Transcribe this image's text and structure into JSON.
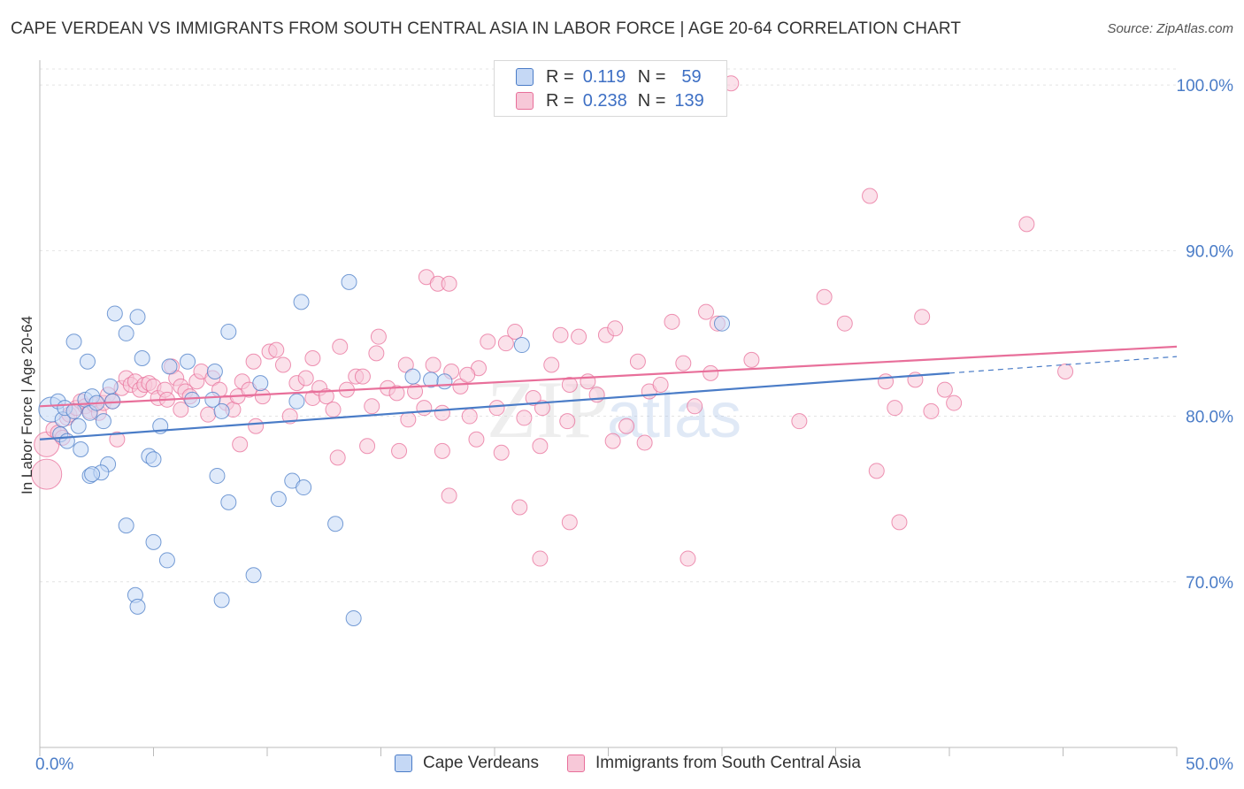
{
  "header": {
    "title": "CAPE VERDEAN VS IMMIGRANTS FROM SOUTH CENTRAL ASIA IN LABOR FORCE | AGE 20-64 CORRELATION CHART",
    "source": "Source: ZipAtlas.com"
  },
  "watermark": {
    "zip": "ZIP",
    "atlas": "atlas"
  },
  "legend": {
    "r_label": "R =",
    "n_label": "N =",
    "series": [
      {
        "r": "0.119",
        "n": "59"
      },
      {
        "r": "0.238",
        "n": "139"
      }
    ]
  },
  "chart_data": {
    "type": "scatter",
    "ylabel": "In Labor Force | Age 20-64",
    "xlim": [
      0,
      50
    ],
    "ylim": [
      60,
      101.5
    ],
    "x_tick_labels": [
      "0.0%",
      "50.0%"
    ],
    "y_ticks": [
      70,
      80,
      90,
      100
    ],
    "y_tick_labels": [
      "70.0%",
      "80.0%",
      "90.0%",
      "100.0%"
    ],
    "grid": true,
    "legend_position": "top-center",
    "series": [
      {
        "name": "Cape Verdeans",
        "color": "#4a7cc7",
        "fill": "#c5d8f5",
        "trend": {
          "x0": 0,
          "y0": 78.6,
          "x1": 40,
          "y1": 82.6,
          "dash_to_x": 50,
          "dash_to_y": 83.6
        },
        "points": [
          [
            0.5,
            80.4
          ],
          [
            0.8,
            80.9
          ],
          [
            1.0,
            79.8
          ],
          [
            1.1,
            80.5
          ],
          [
            1.5,
            80.3
          ],
          [
            0.9,
            78.9
          ],
          [
            1.2,
            78.5
          ],
          [
            1.7,
            79.4
          ],
          [
            2.0,
            81.0
          ],
          [
            2.2,
            80.2
          ],
          [
            2.3,
            81.2
          ],
          [
            2.5,
            80.8
          ],
          [
            2.8,
            79.7
          ],
          [
            1.5,
            84.5
          ],
          [
            2.1,
            83.3
          ],
          [
            3.1,
            81.8
          ],
          [
            3.2,
            80.9
          ],
          [
            3.3,
            86.2
          ],
          [
            3.8,
            85.0
          ],
          [
            4.3,
            86.0
          ],
          [
            4.5,
            83.5
          ],
          [
            4.8,
            77.6
          ],
          [
            5.0,
            77.4
          ],
          [
            5.3,
            79.4
          ],
          [
            5.7,
            83.0
          ],
          [
            6.5,
            83.3
          ],
          [
            6.7,
            81.0
          ],
          [
            3.0,
            77.1
          ],
          [
            2.2,
            76.4
          ],
          [
            2.7,
            76.6
          ],
          [
            2.3,
            76.5
          ],
          [
            3.8,
            73.4
          ],
          [
            5.0,
            72.4
          ],
          [
            5.6,
            71.3
          ],
          [
            4.2,
            69.2
          ],
          [
            4.3,
            68.5
          ],
          [
            7.7,
            82.7
          ],
          [
            8.0,
            80.3
          ],
          [
            7.6,
            81.0
          ],
          [
            8.3,
            85.1
          ],
          [
            7.8,
            76.4
          ],
          [
            8.3,
            74.8
          ],
          [
            9.7,
            82.0
          ],
          [
            11.3,
            80.9
          ],
          [
            10.5,
            75.0
          ],
          [
            11.1,
            76.1
          ],
          [
            11.6,
            75.7
          ],
          [
            11.5,
            86.9
          ],
          [
            13.0,
            73.5
          ],
          [
            13.6,
            88.1
          ],
          [
            9.4,
            70.4
          ],
          [
            8.0,
            68.9
          ],
          [
            13.8,
            67.8
          ],
          [
            16.4,
            82.4
          ],
          [
            17.2,
            82.2
          ],
          [
            17.8,
            82.1
          ],
          [
            21.2,
            84.3
          ],
          [
            30.0,
            85.6
          ],
          [
            1.8,
            78.0
          ]
        ]
      },
      {
        "name": "Immigrants from South Central Asia",
        "color": "#e86f9a",
        "fill": "#f7c8d8",
        "trend": {
          "x0": 0,
          "y0": 80.6,
          "x1": 50,
          "y1": 84.2
        },
        "points": [
          [
            0.3,
            78.3
          ],
          [
            0.3,
            76.5
          ],
          [
            0.6,
            79.2
          ],
          [
            0.8,
            79.0
          ],
          [
            1.0,
            78.7
          ],
          [
            1.2,
            79.9
          ],
          [
            1.3,
            80.1
          ],
          [
            1.6,
            80.5
          ],
          [
            1.8,
            80.9
          ],
          [
            2.0,
            80.6
          ],
          [
            2.2,
            80.3
          ],
          [
            2.4,
            80.7
          ],
          [
            2.6,
            80.2
          ],
          [
            2.8,
            80.8
          ],
          [
            3.0,
            81.3
          ],
          [
            3.2,
            80.9
          ],
          [
            3.4,
            78.6
          ],
          [
            3.6,
            81.7
          ],
          [
            3.8,
            82.3
          ],
          [
            4.0,
            81.9
          ],
          [
            4.2,
            82.1
          ],
          [
            4.4,
            81.6
          ],
          [
            4.6,
            81.9
          ],
          [
            4.8,
            82.0
          ],
          [
            5.0,
            81.8
          ],
          [
            5.2,
            81.1
          ],
          [
            5.5,
            81.6
          ],
          [
            5.8,
            83.0
          ],
          [
            6.0,
            82.3
          ],
          [
            6.2,
            81.8
          ],
          [
            6.4,
            81.5
          ],
          [
            6.6,
            81.2
          ],
          [
            6.9,
            82.1
          ],
          [
            7.1,
            82.7
          ],
          [
            7.4,
            80.1
          ],
          [
            7.6,
            82.3
          ],
          [
            7.9,
            81.6
          ],
          [
            8.2,
            80.8
          ],
          [
            8.5,
            80.4
          ],
          [
            8.7,
            81.2
          ],
          [
            8.9,
            82.1
          ],
          [
            9.2,
            81.6
          ],
          [
            9.5,
            79.4
          ],
          [
            9.8,
            81.2
          ],
          [
            10.1,
            83.9
          ],
          [
            10.4,
            84.0
          ],
          [
            10.7,
            83.1
          ],
          [
            11.0,
            80.0
          ],
          [
            11.3,
            82.0
          ],
          [
            11.7,
            82.3
          ],
          [
            12.0,
            81.1
          ],
          [
            12.3,
            81.7
          ],
          [
            12.6,
            81.2
          ],
          [
            12.9,
            80.4
          ],
          [
            13.2,
            84.2
          ],
          [
            13.5,
            81.6
          ],
          [
            13.9,
            82.4
          ],
          [
            14.2,
            82.4
          ],
          [
            14.6,
            80.6
          ],
          [
            14.9,
            84.8
          ],
          [
            15.3,
            81.7
          ],
          [
            15.7,
            81.4
          ],
          [
            16.1,
            83.1
          ],
          [
            16.5,
            81.5
          ],
          [
            16.9,
            80.5
          ],
          [
            17.3,
            83.1
          ],
          [
            17.7,
            80.2
          ],
          [
            18.1,
            82.7
          ],
          [
            18.5,
            81.8
          ],
          [
            18.9,
            80.0
          ],
          [
            19.3,
            82.9
          ],
          [
            19.7,
            84.5
          ],
          [
            20.1,
            80.5
          ],
          [
            20.5,
            84.4
          ],
          [
            20.9,
            85.1
          ],
          [
            21.3,
            79.9
          ],
          [
            21.7,
            81.1
          ],
          [
            22.1,
            80.5
          ],
          [
            22.5,
            83.1
          ],
          [
            22.9,
            84.9
          ],
          [
            23.3,
            81.9
          ],
          [
            23.7,
            84.8
          ],
          [
            24.1,
            82.1
          ],
          [
            24.5,
            81.3
          ],
          [
            24.9,
            84.9
          ],
          [
            25.3,
            85.3
          ],
          [
            25.8,
            79.4
          ],
          [
            26.3,
            83.3
          ],
          [
            26.8,
            81.5
          ],
          [
            27.3,
            81.9
          ],
          [
            27.8,
            85.7
          ],
          [
            28.3,
            83.2
          ],
          [
            28.8,
            80.6
          ],
          [
            29.3,
            86.3
          ],
          [
            29.8,
            85.6
          ],
          [
            17.0,
            88.4
          ],
          [
            17.5,
            88.0
          ],
          [
            18.0,
            88.0
          ],
          [
            14.4,
            78.2
          ],
          [
            15.8,
            77.9
          ],
          [
            17.7,
            77.9
          ],
          [
            19.2,
            78.6
          ],
          [
            20.3,
            77.8
          ],
          [
            22.0,
            78.2
          ],
          [
            23.2,
            79.7
          ],
          [
            25.2,
            78.5
          ],
          [
            26.6,
            78.4
          ],
          [
            13.1,
            77.5
          ],
          [
            18.0,
            75.2
          ],
          [
            21.1,
            74.5
          ],
          [
            22.0,
            71.4
          ],
          [
            23.3,
            73.6
          ],
          [
            28.5,
            71.4
          ],
          [
            29.5,
            82.6
          ],
          [
            31.3,
            83.4
          ],
          [
            33.4,
            79.7
          ],
          [
            34.5,
            87.2
          ],
          [
            35.4,
            85.6
          ],
          [
            36.5,
            93.3
          ],
          [
            37.2,
            82.1
          ],
          [
            37.6,
            80.5
          ],
          [
            38.5,
            82.2
          ],
          [
            39.2,
            80.3
          ],
          [
            39.8,
            81.6
          ],
          [
            38.8,
            86.0
          ],
          [
            40.2,
            80.8
          ],
          [
            43.4,
            91.6
          ],
          [
            45.1,
            82.7
          ],
          [
            36.8,
            76.7
          ],
          [
            37.8,
            73.6
          ],
          [
            30.4,
            100.1
          ],
          [
            6.2,
            80.4
          ],
          [
            9.4,
            83.3
          ],
          [
            12.0,
            83.5
          ],
          [
            14.8,
            83.8
          ],
          [
            16.2,
            79.8
          ],
          [
            18.8,
            82.5
          ],
          [
            5.6,
            81.0
          ],
          [
            8.8,
            78.3
          ]
        ]
      }
    ]
  }
}
